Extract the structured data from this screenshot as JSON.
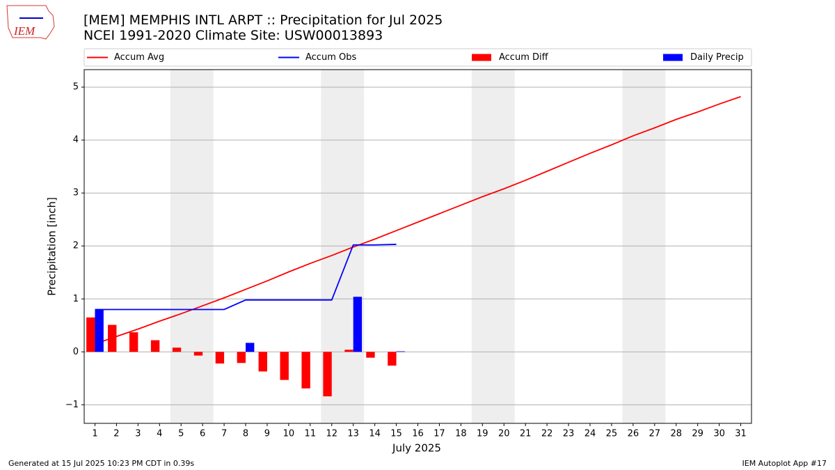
{
  "chart_data": {
    "type": "bar",
    "logo_text": "IEM",
    "title": "[MEM] MEMPHIS INTL ARPT :: Precipitation for Jul 2025",
    "subtitle": "NCEI 1991-2020 Climate Site: USW00013893",
    "xlabel": "July 2025",
    "ylabel": "Precipitation [inch]",
    "footer_left": "Generated at 15 Jul 2025 10:23 PM CDT in 0.39s",
    "footer_right": "IEM Autoplot App #17",
    "x": [
      1,
      2,
      3,
      4,
      5,
      6,
      7,
      8,
      9,
      10,
      11,
      12,
      13,
      14,
      15,
      16,
      17,
      18,
      19,
      20,
      21,
      22,
      23,
      24,
      25,
      26,
      27,
      28,
      29,
      30,
      31
    ],
    "xlim": [
      0.5,
      31.5
    ],
    "xticks": [
      1,
      2,
      3,
      4,
      5,
      6,
      7,
      8,
      9,
      10,
      11,
      12,
      13,
      14,
      15,
      16,
      17,
      18,
      19,
      20,
      21,
      22,
      23,
      24,
      25,
      26,
      27,
      28,
      29,
      30,
      31
    ],
    "ylim": [
      -1.35,
      5.33
    ],
    "yticks": [
      {
        "value": -1,
        "label": "−1"
      },
      0,
      1,
      2,
      3,
      4,
      5
    ],
    "grid": true,
    "legend": "top",
    "shaded_ranges": [
      [
        4.5,
        6.5
      ],
      [
        11.5,
        13.5
      ],
      [
        18.5,
        20.5
      ],
      [
        25.5,
        27.5
      ]
    ],
    "shade_color": "#eeeeee",
    "series": [
      {
        "name": "Accum Avg",
        "type": "line",
        "color": "#ff0000",
        "values": [
          0.15,
          0.29,
          0.43,
          0.58,
          0.72,
          0.87,
          1.02,
          1.18,
          1.34,
          1.51,
          1.67,
          1.82,
          1.98,
          2.13,
          2.29,
          2.45,
          2.61,
          2.77,
          2.93,
          3.08,
          3.24,
          3.41,
          3.58,
          3.75,
          3.91,
          4.08,
          4.23,
          4.39,
          4.53,
          4.68,
          4.82
        ]
      },
      {
        "name": "Accum Obs",
        "type": "line",
        "color": "#0000ff",
        "values": [
          0.8,
          0.8,
          0.8,
          0.8,
          0.8,
          0.8,
          0.8,
          0.98,
          0.98,
          0.98,
          0.98,
          0.98,
          2.02,
          2.02,
          2.03,
          null,
          null,
          null,
          null,
          null,
          null,
          null,
          null,
          null,
          null,
          null,
          null,
          null,
          null,
          null,
          null
        ]
      },
      {
        "name": "Accum Diff",
        "type": "bar",
        "color": "#ff0000",
        "offset": -0.2,
        "width": 0.4,
        "values": [
          0.65,
          0.51,
          0.37,
          0.22,
          0.08,
          -0.07,
          -0.22,
          -0.21,
          -0.37,
          -0.53,
          -0.69,
          -0.84,
          0.04,
          -0.11,
          -0.26,
          null,
          null,
          null,
          null,
          null,
          null,
          null,
          null,
          null,
          null,
          null,
          null,
          null,
          null,
          null,
          null
        ]
      },
      {
        "name": "Daily Precip",
        "type": "bar",
        "color": "#0000ff",
        "offset": 0.2,
        "width": 0.4,
        "values": [
          0.8,
          0,
          0,
          0,
          0,
          0,
          0,
          0.17,
          0,
          0,
          0,
          0,
          1.04,
          0,
          0.01,
          null,
          null,
          null,
          null,
          null,
          null,
          null,
          null,
          null,
          null,
          null,
          null,
          null,
          null,
          null,
          null
        ]
      }
    ]
  }
}
